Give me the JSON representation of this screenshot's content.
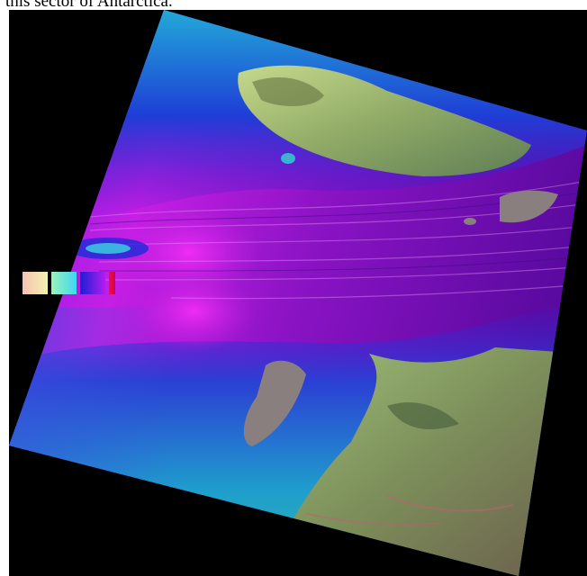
{
  "caption": "this sector of Antarctica.",
  "legend": {
    "swatches": [
      {
        "name": "legend-swatch-1",
        "from": "#f7c2b4",
        "to": "#f2f2b0"
      },
      {
        "name": "legend-swatch-2",
        "from": "#9af3b6",
        "to": "#3fd8f5"
      },
      {
        "name": "legend-swatch-3",
        "from": "#1b1ed6",
        "to": "#b41cf0"
      },
      {
        "name": "legend-swatch-4",
        "from": "#f0103a",
        "to": "#d0004f"
      }
    ]
  },
  "colors": {
    "background": "#000000",
    "ice_shelf_magenta": "#c81ee0",
    "ice_flow_violet": "#7a0fb8",
    "ice_blue": "#1b3ad0",
    "rock_green": "#8fae6e",
    "open_water_gray": "#8a7f7f"
  }
}
